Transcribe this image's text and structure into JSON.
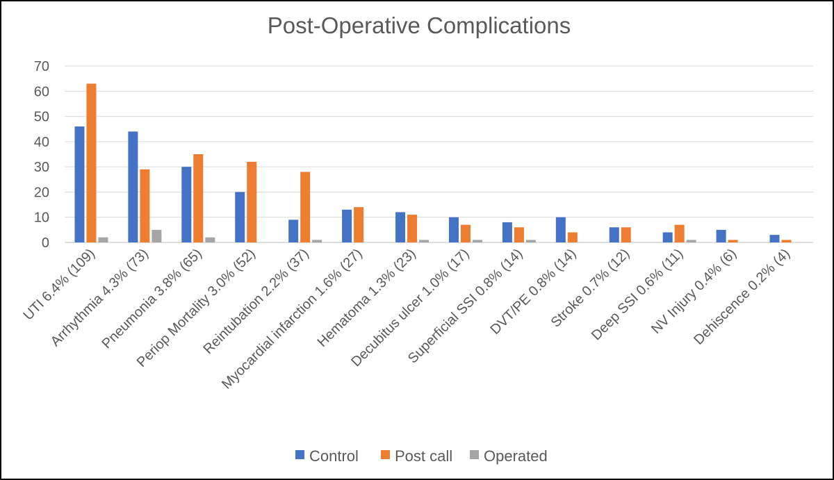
{
  "chart_data": {
    "type": "bar",
    "title": "Post-Operative Complications",
    "xlabel": "",
    "ylabel": "",
    "ylim": [
      0,
      70
    ],
    "yticks": [
      0,
      10,
      20,
      30,
      40,
      50,
      60,
      70
    ],
    "grid": true,
    "legend_position": "bottom",
    "categories": [
      "UTI 6.4% (109)",
      "Arrhythmia 4.3% (73)",
      "Pneumonia 3.8% (65)",
      "Periop Mortality 3.0% (52)",
      "Reintubation 2.2% (37)",
      "Myocardial infarction 1.6% (27)",
      "Hematoma 1.3% (23)",
      "Decubitus ulcer 1.0% (17)",
      "Superficial SSI 0.8% (14)",
      "DVT/PE 0.8% (14)",
      "Stroke 0.7% (12)",
      "Deep SSI 0.6% (11)",
      "NV Injury 0.4% (6)",
      "Dehiscence 0.2% (4)"
    ],
    "series": [
      {
        "name": "Control",
        "color": "#4472C4",
        "values": [
          46,
          44,
          30,
          20,
          9,
          13,
          12,
          10,
          8,
          10,
          6,
          4,
          5,
          3
        ]
      },
      {
        "name": "Post call",
        "color": "#ED7D31",
        "values": [
          63,
          29,
          35,
          32,
          28,
          14,
          11,
          7,
          6,
          4,
          6,
          7,
          1,
          1
        ]
      },
      {
        "name": "Operated",
        "color": "#A5A5A5",
        "values": [
          2,
          5,
          2,
          0,
          1,
          0,
          1,
          1,
          1,
          0,
          0,
          1,
          0,
          0
        ]
      }
    ]
  }
}
